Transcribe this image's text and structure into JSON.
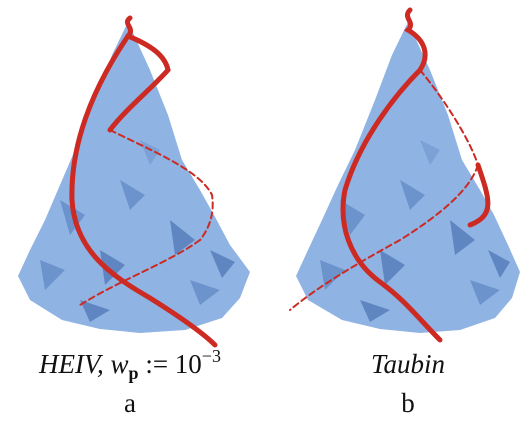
{
  "panels": [
    {
      "caption": {
        "main": "HEIV, w",
        "subscript": "p",
        "middle": " := 10",
        "superscript": "−3"
      },
      "label": "a"
    },
    {
      "caption": "Taubin",
      "label": "b"
    }
  ]
}
